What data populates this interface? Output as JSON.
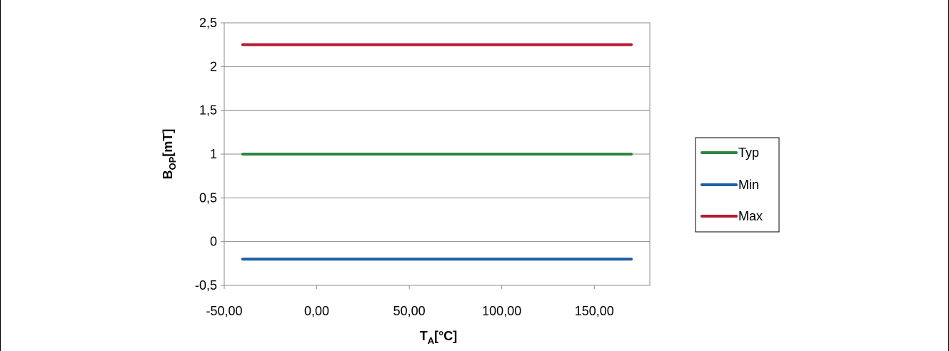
{
  "chart_data": {
    "type": "line",
    "title": "",
    "xlabel": {
      "main": "T",
      "sub": "A",
      "unit": "[°C]"
    },
    "ylabel": {
      "main": "B",
      "sub": "OP",
      "unit": "[mT]"
    },
    "xlim": [
      -50,
      180
    ],
    "ylim": [
      -0.5,
      2.5
    ],
    "x_ticks": [
      -50,
      0,
      50,
      100,
      150
    ],
    "x_tick_labels": [
      "-50,00",
      "0,00",
      "50,00",
      "100,00",
      "150,00"
    ],
    "y_ticks": [
      -0.5,
      0,
      0.5,
      1,
      1.5,
      2,
      2.5
    ],
    "y_tick_labels": [
      "-0,5",
      "0",
      "0,5",
      "1",
      "1,5",
      "2",
      "2,5"
    ],
    "grid": true,
    "legend_position": "right",
    "series": [
      {
        "name": "Typ",
        "color": "#2e8540",
        "x": [
          -40,
          170
        ],
        "values": [
          1.0,
          1.0
        ]
      },
      {
        "name": "Min",
        "color": "#1f5fa0",
        "x": [
          -40,
          170
        ],
        "values": [
          -0.2,
          -0.2
        ]
      },
      {
        "name": "Max",
        "color": "#b8192e",
        "x": [
          -40,
          170
        ],
        "values": [
          2.25,
          2.25
        ]
      }
    ]
  }
}
